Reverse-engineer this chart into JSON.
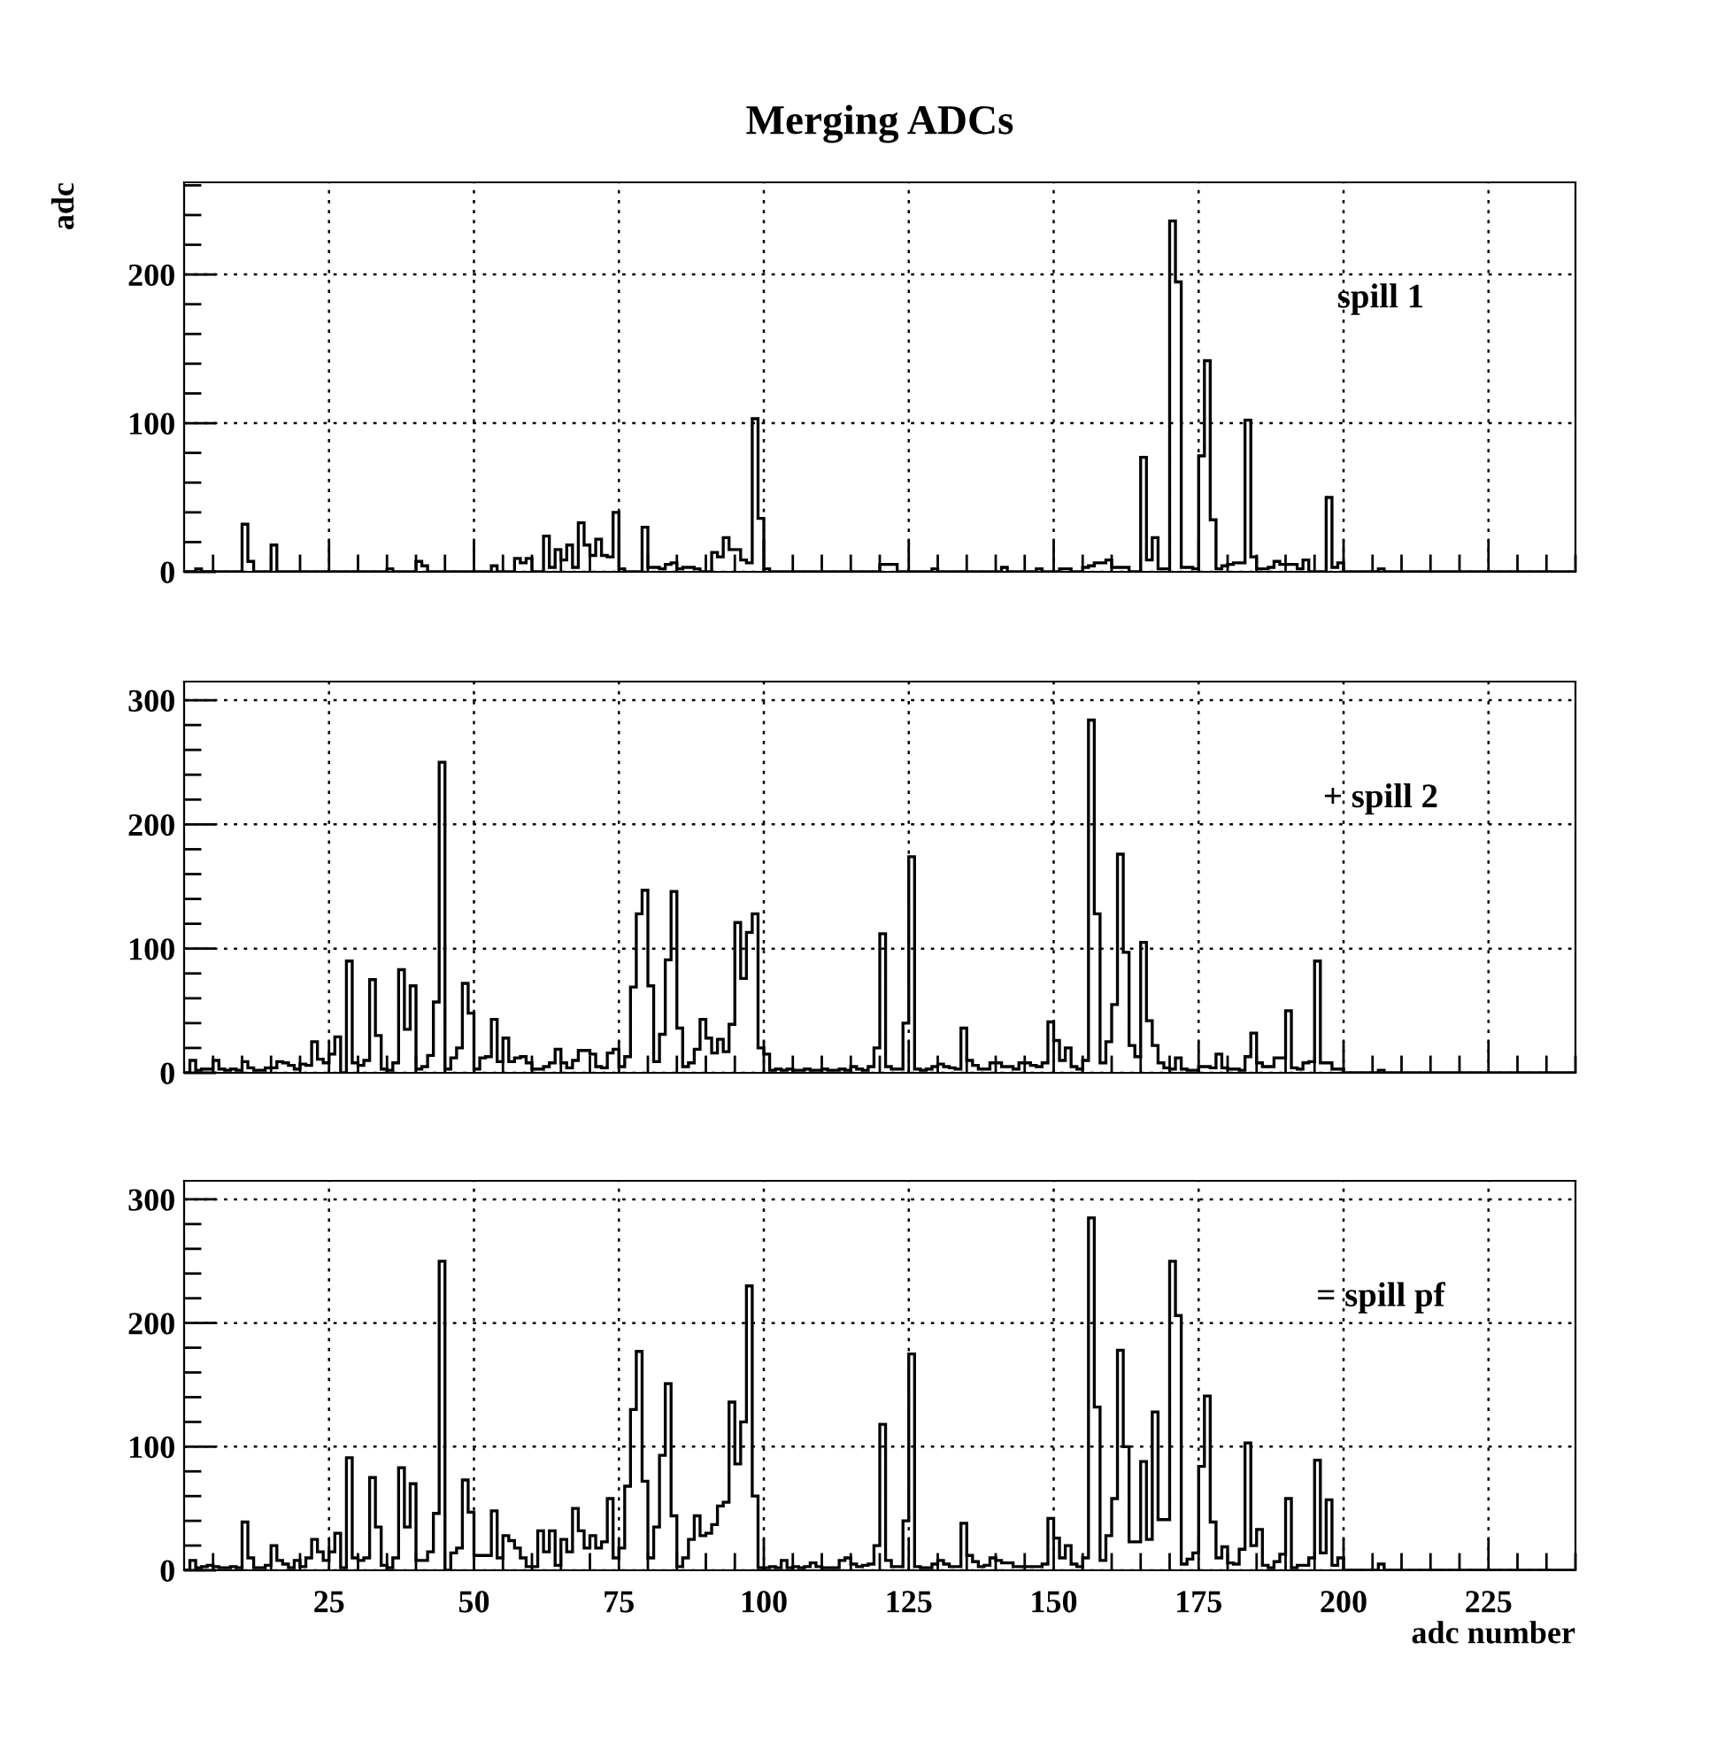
{
  "chart_data": [
    {
      "type": "histogram",
      "title": "Merging ADCs",
      "ylabel": "adc",
      "annotations": [
        "spill 1"
      ],
      "grid": true,
      "tick_labels": "y",
      "line_style": "solid",
      "xlim": [
        0,
        240
      ],
      "ylim": [
        0,
        262
      ],
      "yticks": [
        0,
        100,
        200,
        {
          "value": 20,
          "label": null
        },
        {
          "value": 40,
          "label": null
        },
        {
          "value": 60,
          "label": null
        },
        {
          "value": 80,
          "label": null
        },
        {
          "value": 120,
          "label": null
        },
        {
          "value": 140,
          "label": null
        },
        {
          "value": 160,
          "label": null
        },
        {
          "value": 180,
          "label": null
        },
        {
          "value": 220,
          "label": null
        },
        {
          "value": 240,
          "label": null
        },
        {
          "value": 260,
          "label": null
        }
      ],
      "bins": [
        0,
        1,
        2,
        3,
        4,
        5,
        6,
        7,
        8,
        9,
        10,
        11,
        12,
        13,
        14,
        15,
        16,
        17,
        18,
        19,
        20,
        21,
        22,
        23,
        24,
        25,
        26,
        27,
        28,
        29,
        30,
        31,
        32,
        33,
        34,
        35,
        36,
        37,
        38,
        39,
        40,
        41,
        42,
        43,
        44,
        45,
        46,
        47,
        48,
        49,
        50,
        51,
        52,
        53,
        54,
        55,
        56,
        57,
        58,
        59,
        60,
        61,
        62,
        63,
        64,
        65,
        66,
        67,
        68,
        69,
        70,
        71,
        72,
        73,
        74,
        75,
        76,
        77,
        78,
        79,
        80,
        81,
        82,
        83,
        84,
        85,
        86,
        87,
        88,
        89,
        90,
        91,
        92,
        93,
        94,
        95,
        96,
        97,
        98,
        99,
        100,
        101,
        102,
        103,
        104,
        105,
        106,
        107,
        108,
        109,
        110,
        111,
        112,
        113,
        114,
        115,
        116,
        117,
        118,
        119,
        120,
        121,
        122,
        123,
        124,
        125,
        126,
        127,
        128,
        129,
        130,
        131,
        132,
        133,
        134,
        135,
        136,
        137,
        138,
        139,
        140,
        141,
        142,
        143,
        144,
        145,
        146,
        147,
        148,
        149,
        150,
        151,
        152,
        153,
        154,
        155,
        156,
        157,
        158,
        159,
        160,
        161,
        162,
        163,
        164,
        165,
        166,
        167,
        168,
        169,
        170,
        171,
        172,
        173,
        174,
        175,
        176,
        177,
        178,
        179,
        180,
        181,
        182,
        183,
        184,
        185,
        186,
        187,
        188,
        189,
        190,
        191,
        192,
        193,
        194,
        195,
        196,
        197,
        198,
        199,
        200,
        201,
        202,
        203,
        204,
        205,
        206,
        207,
        208,
        209,
        210,
        211,
        212,
        213,
        214,
        215,
        216,
        217,
        218,
        219,
        220,
        221,
        222,
        223,
        224,
        225,
        226,
        227,
        228,
        229,
        230,
        231,
        232,
        233,
        234,
        235,
        236,
        237,
        238,
        239,
        240
      ],
      "series": [
        {
          "color": "#000000",
          "values": [
            0,
            0,
            2,
            0,
            0,
            0,
            0,
            0,
            0,
            0,
            32,
            7,
            0,
            0,
            0,
            18,
            0,
            0,
            0,
            0,
            0,
            0,
            0,
            0,
            0,
            0,
            0,
            0,
            0,
            0,
            0,
            0,
            0,
            0,
            0,
            2,
            0,
            0,
            0,
            0,
            7,
            4,
            0,
            0,
            0,
            0,
            0,
            0,
            0,
            0,
            0,
            0,
            0,
            4,
            0,
            0,
            0,
            9,
            6,
            9,
            0,
            0,
            24,
            3,
            15,
            8,
            18,
            3,
            33,
            18,
            11,
            22,
            11,
            10,
            40,
            2,
            0,
            0,
            0,
            30,
            3,
            3,
            2,
            5,
            6,
            2,
            3,
            3,
            2,
            0,
            0,
            13,
            10,
            23,
            15,
            15,
            8,
            6,
            103,
            36,
            2,
            0,
            0,
            0,
            0,
            0,
            0,
            0,
            0,
            0,
            0,
            0,
            0,
            0,
            0,
            0,
            0,
            0,
            0,
            0,
            5,
            5,
            5,
            0,
            0,
            0,
            0,
            0,
            0,
            2,
            0,
            0,
            0,
            0,
            0,
            0,
            0,
            0,
            0,
            0,
            0,
            3,
            0,
            0,
            0,
            0,
            0,
            2,
            0,
            0,
            0,
            2,
            2,
            0,
            0,
            3,
            4,
            6,
            6,
            8,
            3,
            3,
            3,
            0,
            0,
            77,
            8,
            23,
            2,
            2,
            236,
            195,
            3,
            3,
            2,
            78,
            142,
            35,
            2,
            4,
            5,
            6,
            6,
            102,
            10,
            2,
            2,
            3,
            7,
            5,
            5,
            5,
            2,
            8,
            0,
            0,
            0,
            50,
            3,
            6,
            0,
            0,
            0,
            0,
            0,
            0,
            2,
            0,
            0,
            0,
            0,
            0,
            0,
            0,
            0,
            0,
            0,
            0,
            0,
            0,
            0,
            0,
            0,
            0,
            0,
            0,
            0,
            0,
            0,
            0,
            0,
            0,
            0,
            0,
            0,
            0,
            0,
            0,
            0,
            0
          ]
        }
      ]
    },
    {
      "type": "histogram",
      "annotations": [
        "+ spill 2"
      ],
      "grid": true,
      "tick_labels": "y",
      "line_style": "solid",
      "xlim": [
        0,
        240
      ],
      "ylim": [
        0,
        315
      ],
      "yticks": [
        0,
        100,
        200,
        300,
        {
          "value": 20,
          "label": null
        },
        {
          "value": 40,
          "label": null
        },
        {
          "value": 60,
          "label": null
        },
        {
          "value": 80,
          "label": null
        },
        {
          "value": 120,
          "label": null
        },
        {
          "value": 140,
          "label": null
        },
        {
          "value": 160,
          "label": null
        },
        {
          "value": 180,
          "label": null
        },
        {
          "value": 220,
          "label": null
        },
        {
          "value": 240,
          "label": null
        },
        {
          "value": 260,
          "label": null
        },
        {
          "value": 280,
          "label": null
        }
      ],
      "bins": [
        0,
        1,
        2,
        3,
        4,
        5,
        6,
        7,
        8,
        9,
        10,
        11,
        12,
        13,
        14,
        15,
        16,
        17,
        18,
        19,
        20,
        21,
        22,
        23,
        24,
        25,
        26,
        27,
        28,
        29,
        30,
        31,
        32,
        33,
        34,
        35,
        36,
        37,
        38,
        39,
        40,
        41,
        42,
        43,
        44,
        45,
        46,
        47,
        48,
        49,
        50,
        51,
        52,
        53,
        54,
        55,
        56,
        57,
        58,
        59,
        60,
        61,
        62,
        63,
        64,
        65,
        66,
        67,
        68,
        69,
        70,
        71,
        72,
        73,
        74,
        75,
        76,
        77,
        78,
        79,
        80,
        81,
        82,
        83,
        84,
        85,
        86,
        87,
        88,
        89,
        90,
        91,
        92,
        93,
        94,
        95,
        96,
        97,
        98,
        99,
        100,
        101,
        102,
        103,
        104,
        105,
        106,
        107,
        108,
        109,
        110,
        111,
        112,
        113,
        114,
        115,
        116,
        117,
        118,
        119,
        120,
        121,
        122,
        123,
        124,
        125,
        126,
        127,
        128,
        129,
        130,
        131,
        132,
        133,
        134,
        135,
        136,
        137,
        138,
        139,
        140,
        141,
        142,
        143,
        144,
        145,
        146,
        147,
        148,
        149,
        150,
        151,
        152,
        153,
        154,
        155,
        156,
        157,
        158,
        159,
        160,
        161,
        162,
        163,
        164,
        165,
        166,
        167,
        168,
        169,
        170,
        171,
        172,
        173,
        174,
        175,
        176,
        177,
        178,
        179,
        180,
        181,
        182,
        183,
        184,
        185,
        186,
        187,
        188,
        189,
        190,
        191,
        192,
        193,
        194,
        195,
        196,
        197,
        198,
        199,
        200,
        201,
        202,
        203,
        204,
        205,
        206,
        207,
        208,
        209,
        210,
        211,
        212,
        213,
        214,
        215,
        216,
        217,
        218,
        219,
        220,
        221,
        222,
        223,
        224,
        225,
        226,
        227,
        228,
        229,
        230,
        231,
        232,
        233,
        234,
        235,
        236,
        237,
        238,
        239,
        240
      ],
      "series": [
        {
          "color": "#000000",
          "values": [
            0,
            10,
            2,
            3,
            3,
            10,
            3,
            2,
            3,
            2,
            9,
            4,
            2,
            2,
            4,
            4,
            9,
            8,
            6,
            3,
            7,
            6,
            25,
            11,
            8,
            15,
            29,
            0,
            90,
            8,
            6,
            10,
            75,
            30,
            3,
            2,
            8,
            83,
            35,
            70,
            3,
            5,
            14,
            57,
            250,
            3,
            12,
            20,
            72,
            48,
            3,
            12,
            13,
            43,
            9,
            28,
            9,
            12,
            13,
            8,
            3,
            3,
            5,
            8,
            19,
            8,
            4,
            10,
            18,
            18,
            15,
            5,
            4,
            16,
            19,
            5,
            13,
            69,
            128,
            147,
            70,
            9,
            31,
            91,
            146,
            36,
            5,
            8,
            19,
            43,
            28,
            16,
            27,
            17,
            39,
            121,
            76,
            113,
            128,
            20,
            15,
            2,
            3,
            2,
            3,
            2,
            2,
            3,
            2,
            2,
            3,
            2,
            2,
            3,
            2,
            5,
            3,
            2,
            5,
            20,
            112,
            5,
            3,
            3,
            40,
            174,
            3,
            2,
            3,
            5,
            7,
            5,
            4,
            3,
            36,
            10,
            6,
            3,
            3,
            8,
            8,
            5,
            5,
            3,
            8,
            8,
            6,
            5,
            8,
            41,
            26,
            10,
            20,
            5,
            3,
            10,
            284,
            128,
            8,
            25,
            55,
            176,
            97,
            22,
            13,
            105,
            42,
            22,
            8,
            4,
            3,
            12,
            3,
            2,
            2,
            5,
            5,
            4,
            15,
            4,
            3,
            3,
            2,
            13,
            32,
            8,
            5,
            5,
            12,
            12,
            50,
            4,
            3,
            8,
            9,
            90,
            8,
            8,
            3,
            3,
            0,
            0,
            0,
            0,
            0,
            0,
            2,
            0,
            0,
            0,
            0,
            0,
            0,
            0,
            0,
            0,
            0,
            0,
            0,
            0,
            0,
            0,
            0,
            0,
            0,
            0,
            0,
            0,
            0,
            0,
            0,
            0,
            0,
            0,
            0,
            0,
            0,
            0,
            0,
            0
          ]
        }
      ]
    },
    {
      "type": "histogram",
      "xlabel": "adc number",
      "annotations": [
        "= spill pf"
      ],
      "grid": true,
      "line_style": "solid",
      "xlim": [
        0,
        240
      ],
      "ylim": [
        0,
        315
      ],
      "xticks": [
        {
          "value": 25,
          "label": "25"
        },
        {
          "value": 50,
          "label": "50"
        },
        {
          "value": 75,
          "label": "75"
        },
        {
          "value": 100,
          "label": "100"
        },
        {
          "value": 125,
          "label": "125"
        },
        {
          "value": 150,
          "label": "150"
        },
        {
          "value": 175,
          "label": "175"
        },
        {
          "value": 200,
          "label": "200"
        },
        {
          "value": 225,
          "label": "225"
        },
        {
          "value": 5,
          "label": null
        },
        {
          "value": 10,
          "label": null
        },
        {
          "value": 15,
          "label": null
        },
        {
          "value": 20,
          "label": null
        },
        {
          "value": 30,
          "label": null
        },
        {
          "value": 35,
          "label": null
        },
        {
          "value": 40,
          "label": null
        },
        {
          "value": 45,
          "label": null
        },
        {
          "value": 55,
          "label": null
        },
        {
          "value": 60,
          "label": null
        },
        {
          "value": 65,
          "label": null
        },
        {
          "value": 70,
          "label": null
        },
        {
          "value": 80,
          "label": null
        },
        {
          "value": 85,
          "label": null
        },
        {
          "value": 90,
          "label": null
        },
        {
          "value": 95,
          "label": null
        },
        {
          "value": 105,
          "label": null
        },
        {
          "value": 110,
          "label": null
        },
        {
          "value": 115,
          "label": null
        },
        {
          "value": 120,
          "label": null
        },
        {
          "value": 130,
          "label": null
        },
        {
          "value": 135,
          "label": null
        },
        {
          "value": 140,
          "label": null
        },
        {
          "value": 145,
          "label": null
        },
        {
          "value": 155,
          "label": null
        },
        {
          "value": 160,
          "label": null
        },
        {
          "value": 165,
          "label": null
        },
        {
          "value": 170,
          "label": null
        },
        {
          "value": 180,
          "label": null
        },
        {
          "value": 185,
          "label": null
        },
        {
          "value": 190,
          "label": null
        },
        {
          "value": 195,
          "label": null
        },
        {
          "value": 205,
          "label": null
        },
        {
          "value": 210,
          "label": null
        },
        {
          "value": 215,
          "label": null
        },
        {
          "value": 220,
          "label": null
        },
        {
          "value": 230,
          "label": null
        },
        {
          "value": 235,
          "label": null
        },
        {
          "value": 240,
          "label": null
        }
      ],
      "yticks": [
        0,
        100,
        200,
        300,
        {
          "value": 20,
          "label": null
        },
        {
          "value": 40,
          "label": null
        },
        {
          "value": 60,
          "label": null
        },
        {
          "value": 80,
          "label": null
        },
        {
          "value": 120,
          "label": null
        },
        {
          "value": 140,
          "label": null
        },
        {
          "value": 160,
          "label": null
        },
        {
          "value": 180,
          "label": null
        },
        {
          "value": 220,
          "label": null
        },
        {
          "value": 240,
          "label": null
        },
        {
          "value": 260,
          "label": null
        },
        {
          "value": 280,
          "label": null
        }
      ],
      "bins": [
        0,
        1,
        2,
        3,
        4,
        5,
        6,
        7,
        8,
        9,
        10,
        11,
        12,
        13,
        14,
        15,
        16,
        17,
        18,
        19,
        20,
        21,
        22,
        23,
        24,
        25,
        26,
        27,
        28,
        29,
        30,
        31,
        32,
        33,
        34,
        35,
        36,
        37,
        38,
        39,
        40,
        41,
        42,
        43,
        44,
        45,
        46,
        47,
        48,
        49,
        50,
        51,
        52,
        53,
        54,
        55,
        56,
        57,
        58,
        59,
        60,
        61,
        62,
        63,
        64,
        65,
        66,
        67,
        68,
        69,
        70,
        71,
        72,
        73,
        74,
        75,
        76,
        77,
        78,
        79,
        80,
        81,
        82,
        83,
        84,
        85,
        86,
        87,
        88,
        89,
        90,
        91,
        92,
        93,
        94,
        95,
        96,
        97,
        98,
        99,
        100,
        101,
        102,
        103,
        104,
        105,
        106,
        107,
        108,
        109,
        110,
        111,
        112,
        113,
        114,
        115,
        116,
        117,
        118,
        119,
        120,
        121,
        122,
        123,
        124,
        125,
        126,
        127,
        128,
        129,
        130,
        131,
        132,
        133,
        134,
        135,
        136,
        137,
        138,
        139,
        140,
        141,
        142,
        143,
        144,
        145,
        146,
        147,
        148,
        149,
        150,
        151,
        152,
        153,
        154,
        155,
        156,
        157,
        158,
        159,
        160,
        161,
        162,
        163,
        164,
        165,
        166,
        167,
        168,
        169,
        170,
        171,
        172,
        173,
        174,
        175,
        176,
        177,
        178,
        179,
        180,
        181,
        182,
        183,
        184,
        185,
        186,
        187,
        188,
        189,
        190,
        191,
        192,
        193,
        194,
        195,
        196,
        197,
        198,
        199,
        200,
        201,
        202,
        203,
        204,
        205,
        206,
        207,
        208,
        209,
        210,
        211,
        212,
        213,
        214,
        215,
        216,
        217,
        218,
        219,
        220,
        221,
        222,
        223,
        224,
        225,
        226,
        227,
        228,
        229,
        230,
        231,
        232,
        233,
        234,
        235,
        236,
        237,
        238,
        239,
        240
      ],
      "series": [
        {
          "color": "#000000",
          "values": [
            0,
            8,
            2,
            3,
            4,
            3,
            2,
            2,
            3,
            2,
            39,
            10,
            2,
            2,
            4,
            20,
            8,
            5,
            2,
            8,
            3,
            10,
            25,
            15,
            8,
            15,
            30,
            2,
            91,
            10,
            8,
            10,
            75,
            35,
            4,
            2,
            10,
            83,
            35,
            70,
            8,
            8,
            15,
            46,
            250,
            0,
            14,
            18,
            73,
            47,
            12,
            12,
            12,
            48,
            10,
            28,
            24,
            18,
            10,
            3,
            3,
            32,
            15,
            32,
            4,
            25,
            15,
            50,
            32,
            18,
            28,
            18,
            23,
            58,
            10,
            18,
            68,
            130,
            177,
            72,
            10,
            35,
            93,
            151,
            44,
            3,
            10,
            25,
            44,
            28,
            30,
            37,
            52,
            55,
            136,
            86,
            120,
            230,
            60,
            2,
            2,
            3,
            2,
            8,
            2,
            3,
            2,
            3,
            6,
            3,
            2,
            2,
            2,
            8,
            10,
            5,
            3,
            4,
            5,
            20,
            118,
            8,
            3,
            3,
            40,
            175,
            3,
            2,
            2,
            5,
            8,
            5,
            3,
            3,
            38,
            12,
            7,
            3,
            4,
            10,
            8,
            6,
            6,
            3,
            3,
            3,
            3,
            3,
            5,
            42,
            26,
            10,
            20,
            5,
            3,
            10,
            285,
            132,
            8,
            28,
            58,
            178,
            100,
            23,
            23,
            88,
            25,
            128,
            41,
            41,
            250,
            206,
            5,
            9,
            14,
            84,
            141,
            39,
            10,
            19,
            6,
            5,
            17,
            103,
            20,
            33,
            4,
            2,
            7,
            13,
            58,
            2,
            4,
            4,
            10,
            89,
            14,
            57,
            4,
            10,
            0,
            0,
            0,
            0,
            0,
            0,
            5,
            0,
            0,
            0,
            0,
            0,
            0,
            0,
            0,
            0,
            0,
            0,
            0,
            0,
            0,
            0,
            0,
            0,
            0,
            0,
            0,
            0,
            0,
            0,
            0,
            0,
            0,
            0,
            0,
            0,
            0,
            0,
            0,
            0
          ]
        }
      ]
    }
  ]
}
